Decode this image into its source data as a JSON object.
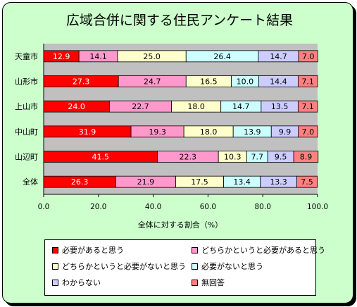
{
  "chart_data": {
    "type": "bar",
    "orientation": "horizontal",
    "stacked": true,
    "title": "広域合併に関する住民アンケート結果",
    "xlabel": "全体に対する割合（%）",
    "ylabel": "",
    "xlim": [
      0,
      100
    ],
    "x_ticks": [
      "0.0",
      "20.0",
      "40.0",
      "60.0",
      "80.0",
      "100.0"
    ],
    "grid": false,
    "legend_position": "bottom",
    "categories": [
      "天童市",
      "山形市",
      "上山市",
      "中山町",
      "山辺町",
      "全体"
    ],
    "series": [
      {
        "name": "必要があると思う",
        "color": "#ff0000",
        "values": [
          12.9,
          27.3,
          24.0,
          31.9,
          41.5,
          26.3
        ],
        "labels": [
          "12.9",
          "27.3",
          "24.0",
          "31.9",
          "41.5",
          "26.3"
        ]
      },
      {
        "name": "どちらかというと必要があると思う",
        "color": "#ff99cc",
        "values": [
          14.1,
          24.7,
          22.7,
          19.3,
          22.3,
          21.9
        ],
        "labels": [
          "14.1",
          "24.7",
          "22.7",
          "19.3",
          "22.3",
          "21.9"
        ]
      },
      {
        "name": "どちらかというと必要がないと思う",
        "color": "#ffffcc",
        "values": [
          25.0,
          16.5,
          18.0,
          18.0,
          10.3,
          17.5
        ],
        "labels": [
          "25.0",
          "16.5",
          "18.0",
          "18.0",
          "10.3",
          "17.5"
        ]
      },
      {
        "name": "必要がないと思う",
        "color": "#ccffff",
        "values": [
          26.4,
          10.0,
          14.7,
          13.9,
          7.7,
          13.4
        ],
        "labels": [
          "26.4",
          "10.0",
          "14.7",
          "13.9",
          "7.7",
          "13.4"
        ]
      },
      {
        "name": "わからない",
        "color": "#ccccff",
        "values": [
          14.7,
          14.4,
          13.5,
          9.9,
          9.5,
          13.3
        ],
        "labels": [
          "14.7",
          "14.4",
          "13.5",
          "9.9",
          "9.5",
          "13.3"
        ]
      },
      {
        "name": "無回答",
        "color": "#ff8080",
        "values": [
          7.0,
          7.1,
          7.1,
          7.0,
          8.9,
          7.5
        ],
        "labels": [
          "7.0",
          "7.1",
          "7.1",
          "7.0",
          "8.9",
          "7.5"
        ]
      }
    ],
    "colors": {
      "plot_background": "#c0c0c0",
      "frame_background": "#ccffcc"
    }
  }
}
